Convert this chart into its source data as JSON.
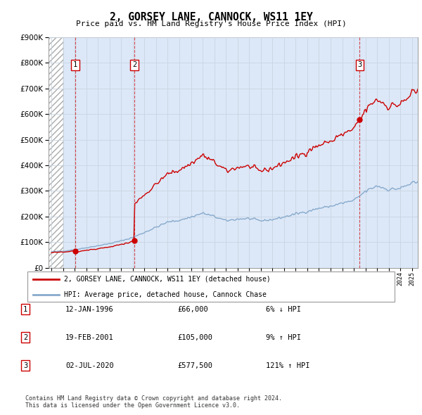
{
  "title": "2, GORSEY LANE, CANNOCK, WS11 1EY",
  "subtitle": "Price paid vs. HM Land Registry's House Price Index (HPI)",
  "ylabel_max": 900000,
  "yticks": [
    0,
    100000,
    200000,
    300000,
    400000,
    500000,
    600000,
    700000,
    800000,
    900000
  ],
  "xlim_start": 1993.75,
  "xlim_end": 2025.5,
  "sale_dates": [
    1996.04,
    2001.13,
    2020.5
  ],
  "sale_prices": [
    66000,
    105000,
    577500
  ],
  "sale_labels": [
    "1",
    "2",
    "3"
  ],
  "legend_label_red": "2, GORSEY LANE, CANNOCK, WS11 1EY (detached house)",
  "legend_label_blue": "HPI: Average price, detached house, Cannock Chase",
  "table_rows": [
    [
      "1",
      "12-JAN-1996",
      "£66,000",
      "6% ↓ HPI"
    ],
    [
      "2",
      "19-FEB-2001",
      "£105,000",
      "9% ↑ HPI"
    ],
    [
      "3",
      "02-JUL-2020",
      "£577,500",
      "121% ↑ HPI"
    ]
  ],
  "footnote": "Contains HM Land Registry data © Crown copyright and database right 2024.\nThis data is licensed under the Open Government Licence v3.0.",
  "background_plot_color": "#dce8f8",
  "grid_color": "#c8d4e0",
  "red_color": "#cc0000",
  "blue_color": "#88aacc",
  "hatch_end": 1995.0
}
